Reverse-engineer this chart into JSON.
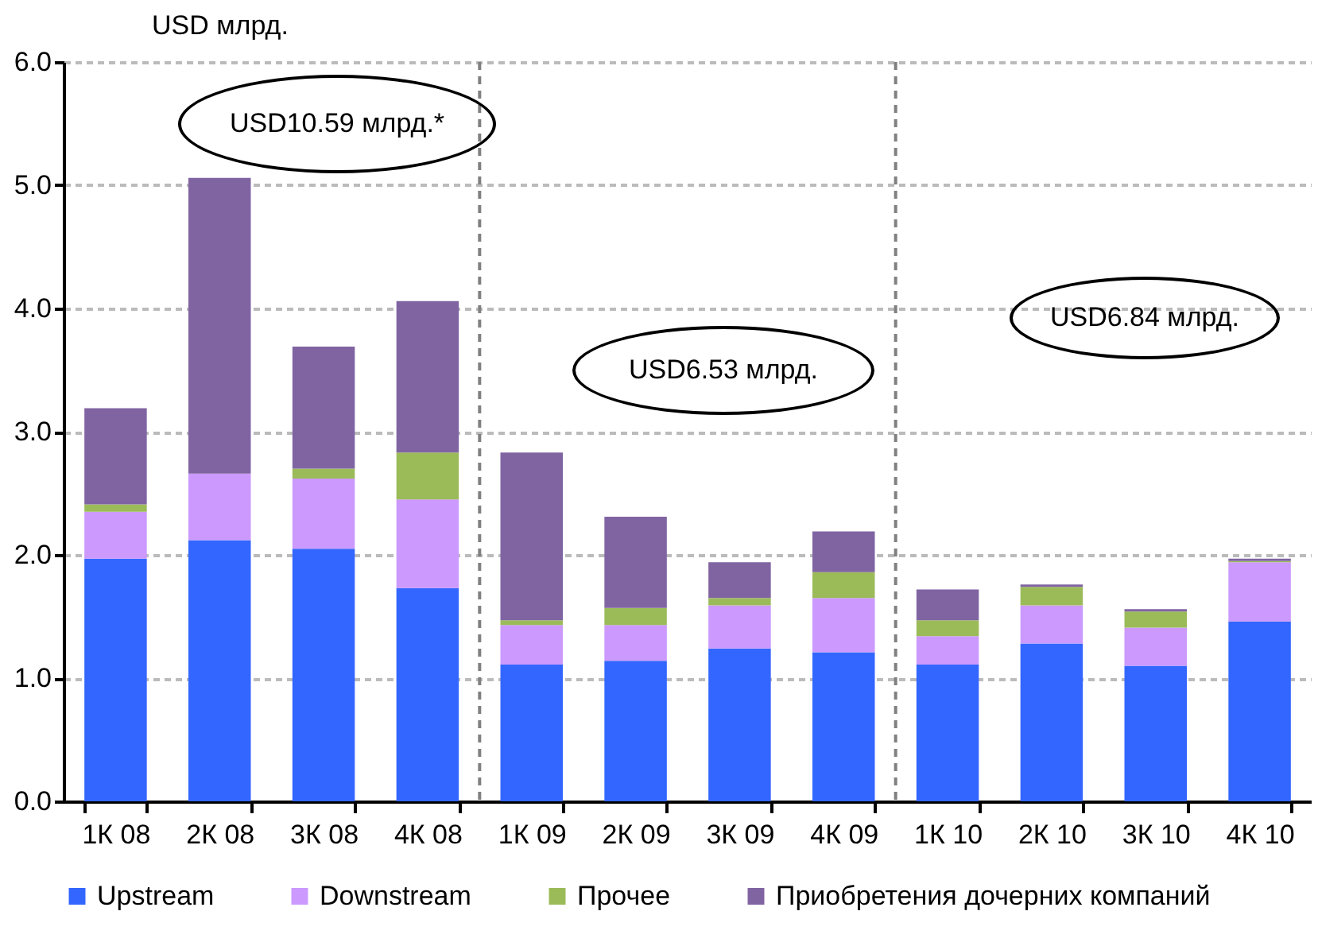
{
  "chart_data": {
    "type": "bar",
    "stacked": true,
    "ylabel": "USD млрд.",
    "categories": [
      "1К 08",
      "2К 08",
      "3К 08",
      "4К 08",
      "1К 09",
      "2К 09",
      "3К 09",
      "4К 09",
      "1К 10",
      "2К 10",
      "3К 10",
      "4К 10"
    ],
    "series": [
      {
        "name": "Upstream",
        "color": "#3366ff",
        "values": [
          1.97,
          2.12,
          2.05,
          1.73,
          1.11,
          1.14,
          1.24,
          1.21,
          1.11,
          1.28,
          1.1,
          1.46
        ]
      },
      {
        "name": "Downstream",
        "color": "#cc99ff",
        "values": [
          0.38,
          0.54,
          0.57,
          0.72,
          0.32,
          0.29,
          0.35,
          0.44,
          0.23,
          0.31,
          0.31,
          0.48
        ]
      },
      {
        "name": "Прочее",
        "color": "#9bbb59",
        "values": [
          0.06,
          0,
          0.08,
          0.38,
          0.04,
          0.14,
          0.06,
          0.21,
          0.13,
          0.15,
          0.13,
          0.01
        ]
      },
      {
        "name": "Приобретения дочерних компаний",
        "color": "#8064a2",
        "values": [
          0.78,
          2.4,
          0.99,
          1.23,
          1.36,
          0.74,
          0.29,
          0.33,
          0.25,
          0.02,
          0.02,
          0.02
        ]
      }
    ],
    "ylim": [
      0,
      6
    ],
    "yticks": [
      {
        "value": 0,
        "label": "0.0"
      },
      {
        "value": 1,
        "label": "1.0"
      },
      {
        "value": 2,
        "label": "2.0"
      },
      {
        "value": 3,
        "label": "3.0"
      },
      {
        "value": 4,
        "label": "4.0"
      },
      {
        "value": 5,
        "label": "5.0"
      },
      {
        "value": 6,
        "label": "6.0"
      }
    ],
    "grid": "y",
    "legend": "bottom",
    "annotations": [
      "USD10.59 млрд.*",
      "USD6.53 млрд.",
      "USD6.84 млрд."
    ]
  }
}
